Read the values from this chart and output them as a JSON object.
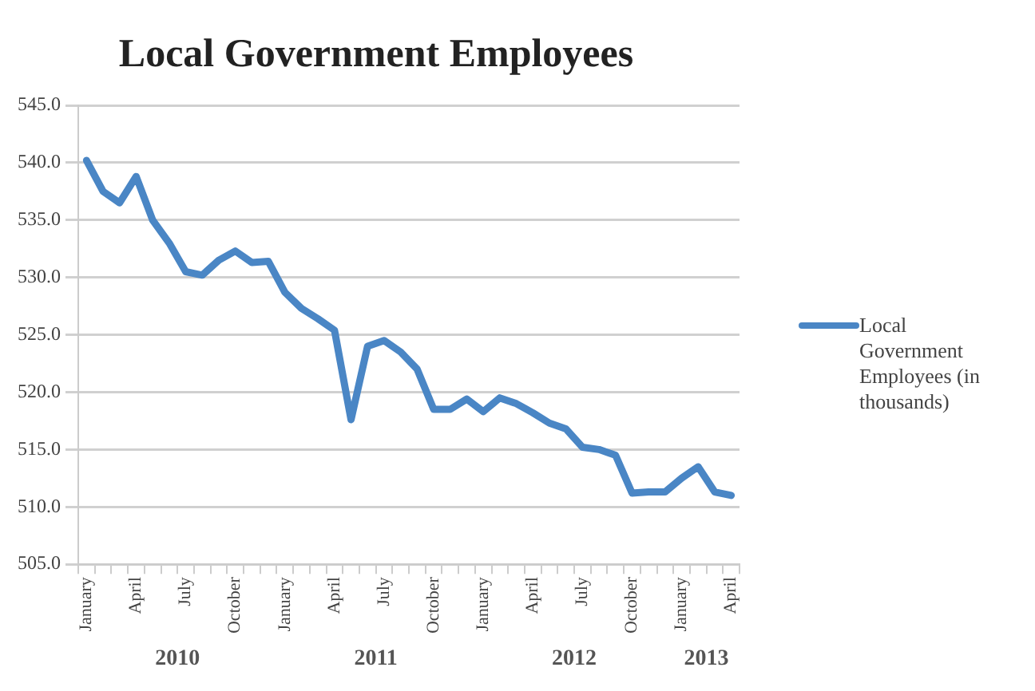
{
  "chart_data": {
    "type": "line",
    "title": "Local Government Employees",
    "categories": [
      "January",
      null,
      null,
      "April",
      null,
      null,
      "July",
      null,
      null,
      "October",
      null,
      null,
      "January",
      null,
      null,
      "April",
      null,
      null,
      "July",
      null,
      null,
      "October",
      null,
      null,
      "January",
      null,
      null,
      "April",
      null,
      null,
      "July",
      null,
      null,
      "October",
      null,
      null,
      "January",
      null,
      null,
      "April"
    ],
    "series": [
      {
        "name": "Local Government Employees (in thousands)",
        "color": "#4a86c5",
        "values": [
          540.2,
          537.5,
          536.5,
          538.8,
          535.0,
          533.0,
          530.5,
          530.2,
          531.5,
          532.3,
          531.3,
          531.4,
          528.7,
          527.3,
          526.4,
          525.4,
          517.6,
          524.0,
          524.5,
          523.5,
          522.0,
          518.5,
          518.5,
          519.4,
          518.3,
          519.5,
          519.0,
          518.2,
          517.3,
          516.8,
          515.2,
          515.0,
          514.5,
          511.2,
          511.3,
          511.3,
          512.5,
          513.5,
          511.3,
          511.0
        ]
      }
    ],
    "ylim": [
      505,
      545
    ],
    "yticks": [
      {
        "value": 505,
        "label": "505.0"
      },
      {
        "value": 510,
        "label": "510.0"
      },
      {
        "value": 515,
        "label": "515.0"
      },
      {
        "value": 520,
        "label": "520.0"
      },
      {
        "value": 525,
        "label": "525.0"
      },
      {
        "value": 530,
        "label": "530.0"
      },
      {
        "value": 535,
        "label": "535.0"
      },
      {
        "value": 540,
        "label": "540.0"
      },
      {
        "value": 545,
        "label": "545.0"
      }
    ],
    "annotations": [
      "2010",
      "2011",
      "2012",
      "2013"
    ],
    "grid": "y",
    "legend": "right",
    "marker": "none",
    "line_style": "solid"
  }
}
